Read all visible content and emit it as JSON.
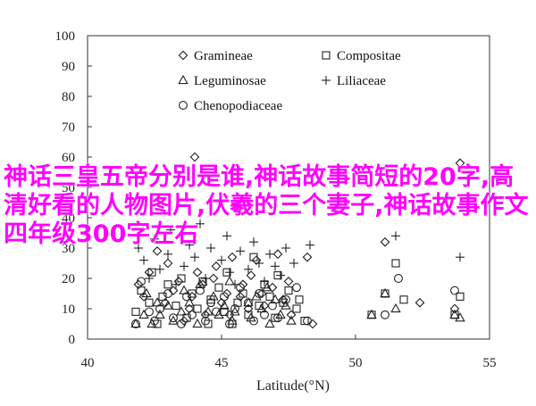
{
  "overlay": {
    "text": "神话三皇五帝分别是谁,神话故事简短的20字,高清好看的人物图片,伏羲的三个妻子,神话故事作文四年级300字左右"
  },
  "chart_data": {
    "type": "scatter",
    "xlabel": "Latitude(°N)",
    "ylabel": "",
    "title": "",
    "xlim": [
      40,
      55
    ],
    "ylim": [
      0,
      100
    ],
    "xticks": [
      40,
      45,
      50,
      55
    ],
    "yticks": [
      0,
      10,
      20,
      30,
      40,
      50,
      60,
      70,
      80,
      90,
      100
    ],
    "grid": false,
    "legend_position": "top-center",
    "series": [
      {
        "name": "Gramineae",
        "marker": "diamond",
        "points": [
          [
            41.9,
            18
          ],
          [
            42.1,
            14
          ],
          [
            42.3,
            22
          ],
          [
            42.6,
            29
          ],
          [
            42.9,
            12
          ],
          [
            43.0,
            25
          ],
          [
            43.2,
            16
          ],
          [
            43.4,
            19
          ],
          [
            43.6,
            6
          ],
          [
            43.8,
            10
          ],
          [
            43.9,
            14
          ],
          [
            44.0,
            60
          ],
          [
            44.1,
            22
          ],
          [
            44.3,
            18
          ],
          [
            44.4,
            8
          ],
          [
            44.7,
            20
          ],
          [
            44.8,
            24
          ],
          [
            45.0,
            12
          ],
          [
            45.2,
            15
          ],
          [
            45.3,
            8
          ],
          [
            45.4,
            27
          ],
          [
            45.7,
            14
          ],
          [
            45.8,
            18
          ],
          [
            46.0,
            10
          ],
          [
            46.1,
            21
          ],
          [
            46.3,
            26
          ],
          [
            46.5,
            15
          ],
          [
            46.6,
            11
          ],
          [
            46.9,
            17
          ],
          [
            47.1,
            28
          ],
          [
            47.3,
            13
          ],
          [
            47.5,
            19
          ],
          [
            47.6,
            8
          ],
          [
            48.2,
            27
          ],
          [
            48.4,
            5
          ],
          [
            49.6,
            45
          ],
          [
            51.1,
            32
          ],
          [
            52.4,
            12
          ],
          [
            53.7,
            10
          ],
          [
            53.9,
            58
          ]
        ]
      },
      {
        "name": "Compositae",
        "marker": "square",
        "points": [
          [
            41.8,
            9
          ],
          [
            42.0,
            16
          ],
          [
            42.3,
            12
          ],
          [
            42.4,
            22
          ],
          [
            42.6,
            5
          ],
          [
            42.8,
            14
          ],
          [
            43.0,
            18
          ],
          [
            43.3,
            11
          ],
          [
            43.5,
            20
          ],
          [
            43.7,
            7
          ],
          [
            43.9,
            15
          ],
          [
            44.1,
            10
          ],
          [
            44.3,
            19
          ],
          [
            44.5,
            5
          ],
          [
            44.6,
            13
          ],
          [
            44.9,
            17
          ],
          [
            45.1,
            9
          ],
          [
            45.2,
            22
          ],
          [
            45.4,
            5
          ],
          [
            45.6,
            12
          ],
          [
            45.8,
            15
          ],
          [
            46.0,
            8
          ],
          [
            46.2,
            27
          ],
          [
            46.4,
            11
          ],
          [
            46.6,
            18
          ],
          [
            46.8,
            14
          ],
          [
            47.0,
            7
          ],
          [
            47.1,
            21
          ],
          [
            47.3,
            12
          ],
          [
            47.5,
            16
          ],
          [
            47.8,
            10
          ],
          [
            47.9,
            13
          ],
          [
            48.1,
            6
          ],
          [
            50.6,
            8
          ],
          [
            51.1,
            15
          ],
          [
            51.5,
            25
          ],
          [
            51.8,
            13
          ],
          [
            53.7,
            8
          ],
          [
            53.9,
            14
          ]
        ]
      },
      {
        "name": "Leguminosae",
        "marker": "triangle",
        "points": [
          [
            41.8,
            5
          ],
          [
            42.1,
            8
          ],
          [
            42.2,
            15
          ],
          [
            42.4,
            5
          ],
          [
            42.6,
            12
          ],
          [
            42.7,
            8
          ],
          [
            43.0,
            11
          ],
          [
            43.2,
            6
          ],
          [
            43.5,
            9
          ],
          [
            43.6,
            16
          ],
          [
            43.8,
            12
          ],
          [
            44.1,
            5
          ],
          [
            44.2,
            18
          ],
          [
            44.5,
            9
          ],
          [
            44.7,
            14
          ],
          [
            44.9,
            8
          ],
          [
            45.1,
            11
          ],
          [
            45.3,
            19
          ],
          [
            45.4,
            6
          ],
          [
            45.5,
            9
          ],
          [
            46.0,
            12
          ],
          [
            46.1,
            7
          ],
          [
            46.3,
            14
          ],
          [
            46.5,
            10
          ],
          [
            46.7,
            17
          ],
          [
            46.8,
            5
          ],
          [
            47.0,
            13
          ],
          [
            47.2,
            8
          ],
          [
            47.4,
            11
          ],
          [
            47.6,
            6
          ],
          [
            50.6,
            8
          ],
          [
            51.1,
            15
          ],
          [
            51.5,
            10
          ],
          [
            53.7,
            8
          ],
          [
            53.9,
            7
          ]
        ]
      },
      {
        "name": "Liliaceae",
        "marker": "plus",
        "points": [
          [
            41.9,
            30
          ],
          [
            42.1,
            26
          ],
          [
            42.3,
            20
          ],
          [
            42.5,
            33
          ],
          [
            42.7,
            23
          ],
          [
            43.0,
            28
          ],
          [
            43.1,
            36
          ],
          [
            43.3,
            18
          ],
          [
            43.6,
            24
          ],
          [
            43.8,
            31
          ],
          [
            44.0,
            27
          ],
          [
            44.2,
            38
          ],
          [
            44.4,
            20
          ],
          [
            44.6,
            30
          ],
          [
            45.0,
            26
          ],
          [
            45.2,
            34
          ],
          [
            45.3,
            22
          ],
          [
            45.5,
            18
          ],
          [
            45.7,
            29
          ],
          [
            46.0,
            23
          ],
          [
            46.2,
            32
          ],
          [
            46.4,
            25
          ],
          [
            46.6,
            19
          ],
          [
            46.8,
            28
          ],
          [
            47.0,
            24
          ],
          [
            47.2,
            21
          ],
          [
            47.4,
            30
          ],
          [
            47.7,
            25
          ],
          [
            48.3,
            31
          ],
          [
            51.5,
            34
          ],
          [
            53.9,
            27
          ]
        ]
      },
      {
        "name": "Chenopodiaceae",
        "marker": "circle",
        "points": [
          [
            41.8,
            5
          ],
          [
            42.0,
            19
          ],
          [
            42.3,
            9
          ],
          [
            42.5,
            6
          ],
          [
            42.7,
            10
          ],
          [
            43.0,
            15
          ],
          [
            43.2,
            7
          ],
          [
            43.5,
            5
          ],
          [
            43.7,
            14
          ],
          [
            43.9,
            8
          ],
          [
            44.2,
            16
          ],
          [
            44.4,
            6
          ],
          [
            44.6,
            12
          ],
          [
            44.8,
            9
          ],
          [
            45.1,
            14
          ],
          [
            45.3,
            5
          ],
          [
            45.5,
            10
          ],
          [
            45.7,
            17
          ],
          [
            46.0,
            12
          ],
          [
            46.2,
            6
          ],
          [
            46.4,
            15
          ],
          [
            46.6,
            8
          ],
          [
            46.9,
            11
          ],
          [
            47.1,
            7
          ],
          [
            47.4,
            13
          ],
          [
            47.8,
            17
          ],
          [
            48.2,
            6
          ],
          [
            51.1,
            8
          ],
          [
            51.6,
            20
          ],
          [
            53.7,
            16
          ]
        ]
      }
    ]
  }
}
